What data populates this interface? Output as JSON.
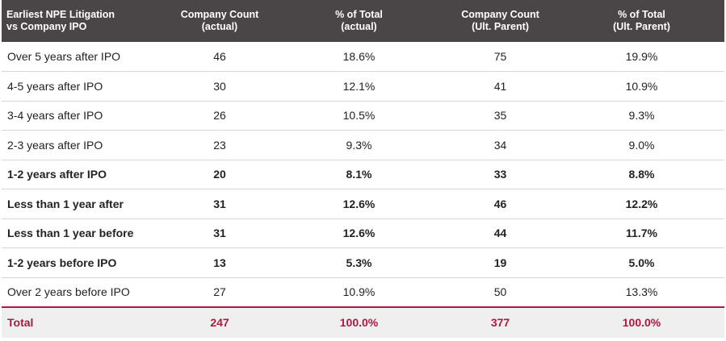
{
  "chart_data": {
    "type": "table",
    "colors": {
      "header_bg": "#4a4648",
      "total_accent": "#b0183f",
      "total_bg": "#efefef"
    },
    "headers": [
      {
        "line1": "Earliest NPE Litigation",
        "line2": "vs Company IPO"
      },
      {
        "line1": "Company Count",
        "line2": "(actual)"
      },
      {
        "line1": "% of Total",
        "line2": "(actual)"
      },
      {
        "line1": "Company Count",
        "line2": "(Ult. Parent)"
      },
      {
        "line1": "% of Total",
        "line2": "(Ult. Parent)"
      }
    ],
    "rows": [
      {
        "label": "Over 5 years after IPO",
        "count_actual": "46",
        "pct_actual": "18.6%",
        "count_parent": "75",
        "pct_parent": "19.9%",
        "bold": false
      },
      {
        "label": "4-5 years after IPO",
        "count_actual": "30",
        "pct_actual": "12.1%",
        "count_parent": "41",
        "pct_parent": "10.9%",
        "bold": false
      },
      {
        "label": "3-4 years after IPO",
        "count_actual": "26",
        "pct_actual": "10.5%",
        "count_parent": "35",
        "pct_parent": "9.3%",
        "bold": false
      },
      {
        "label": "2-3 years after IPO",
        "count_actual": "23",
        "pct_actual": "9.3%",
        "count_parent": "34",
        "pct_parent": "9.0%",
        "bold": false
      },
      {
        "label": "1-2 years after IPO",
        "count_actual": "20",
        "pct_actual": "8.1%",
        "count_parent": "33",
        "pct_parent": "8.8%",
        "bold": true
      },
      {
        "label": "Less than 1 year after",
        "count_actual": "31",
        "pct_actual": "12.6%",
        "count_parent": "46",
        "pct_parent": "12.2%",
        "bold": true
      },
      {
        "label": "Less than 1 year before",
        "count_actual": "31",
        "pct_actual": "12.6%",
        "count_parent": "44",
        "pct_parent": "11.7%",
        "bold": true
      },
      {
        "label": "1-2 years before IPO",
        "count_actual": "13",
        "pct_actual": "5.3%",
        "count_parent": "19",
        "pct_parent": "5.0%",
        "bold": true
      },
      {
        "label": "Over 2 years before IPO",
        "count_actual": "27",
        "pct_actual": "10.9%",
        "count_parent": "50",
        "pct_parent": "13.3%",
        "bold": false
      }
    ],
    "total": {
      "label": "Total",
      "count_actual": "247",
      "pct_actual": "100.0%",
      "count_parent": "377",
      "pct_parent": "100.0%"
    }
  }
}
